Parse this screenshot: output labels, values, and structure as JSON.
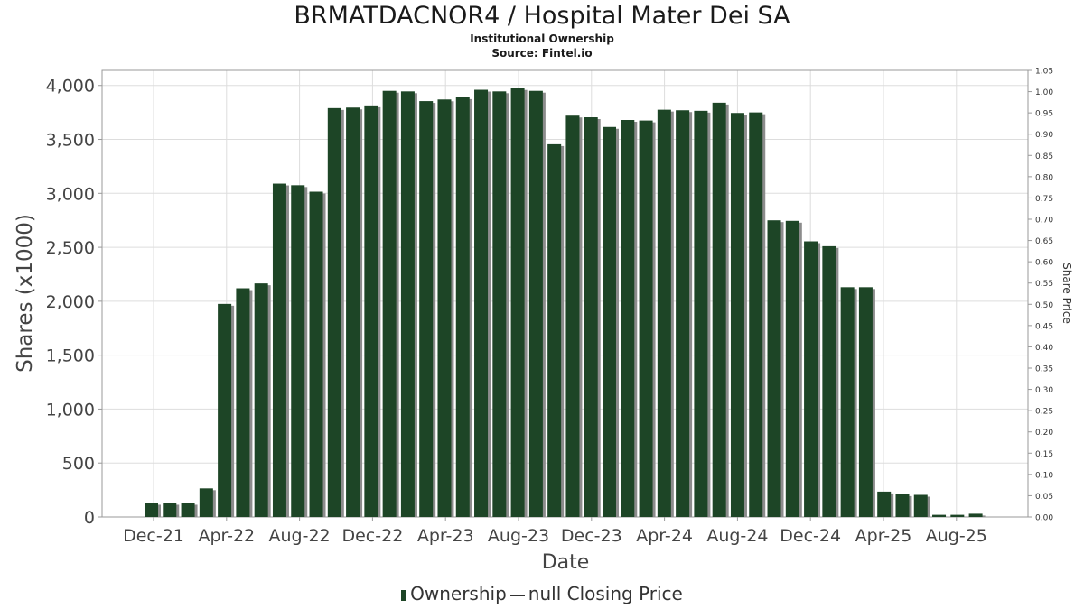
{
  "header": {
    "title": "BRMATDACNOR4 / Hospital Mater Dei SA",
    "subtitle": "Institutional Ownership",
    "source": "Source: Fintel.io"
  },
  "legend": {
    "ownership_label": "Ownership",
    "price_label": "null Closing Price"
  },
  "colors": {
    "bar": "#1d4526",
    "bar_shadow": "#8c8c8c",
    "grid": "#dddddd",
    "frame": "#999999"
  },
  "chart_data": {
    "type": "bar",
    "title": "BRMATDACNOR4 / Hospital Mater Dei SA",
    "xlabel": "Date",
    "ylabel": "Shares (x1000)",
    "y2label": "Share Price",
    "ylim": [
      0,
      4140
    ],
    "y2lim": [
      0,
      1.05
    ],
    "grid": true,
    "legend_position": "bottom",
    "yticks": [
      0,
      500,
      1000,
      1500,
      2000,
      2500,
      3000,
      3500,
      4000
    ],
    "ytick_labels": [
      "0",
      "500",
      "1,000",
      "1,500",
      "2,000",
      "2,500",
      "3,000",
      "3,500",
      "4,000"
    ],
    "y2ticks": [
      "0.00",
      "0.05",
      "0.10",
      "0.15",
      "0.20",
      "0.25",
      "0.30",
      "0.35",
      "0.40",
      "0.45",
      "0.50",
      "0.55",
      "0.60",
      "0.65",
      "0.70",
      "0.75",
      "0.80",
      "0.85",
      "0.90",
      "0.95",
      "1.00",
      "1.05"
    ],
    "xticks": [
      "Dec-21",
      "Apr-22",
      "Aug-22",
      "Dec-22",
      "Apr-23",
      "Aug-23",
      "Dec-23",
      "Apr-24",
      "Aug-24",
      "Dec-24",
      "Apr-25",
      "Aug-25"
    ],
    "series": [
      {
        "name": "Ownership",
        "values": [
          130,
          130,
          130,
          265,
          1975,
          2120,
          2165,
          3090,
          3075,
          3015,
          3790,
          3795,
          3815,
          3950,
          3945,
          3855,
          3870,
          3890,
          3960,
          3945,
          3975,
          3950,
          3455,
          3720,
          3705,
          3615,
          3680,
          3675,
          3775,
          3770,
          3765,
          3840,
          3745,
          3750,
          2750,
          2745,
          2555,
          2510,
          2130,
          2130,
          235,
          210,
          205,
          20,
          20,
          30
        ]
      }
    ]
  }
}
